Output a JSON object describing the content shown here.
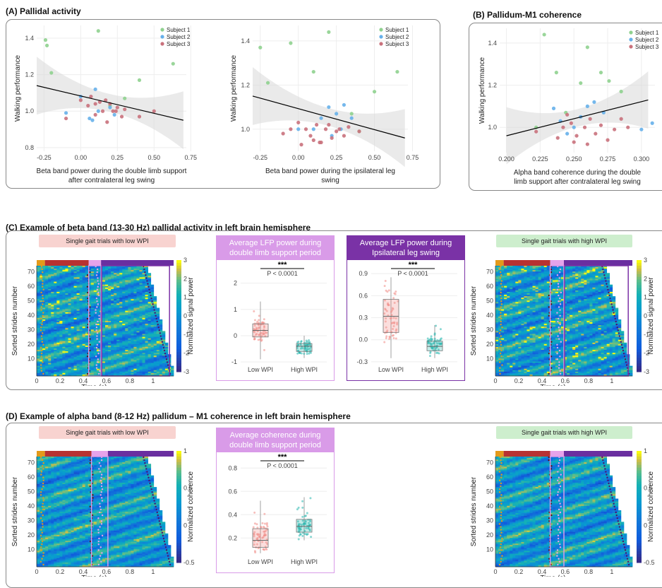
{
  "panels": {
    "a_title": "(A) Pallidal activity",
    "b_title": "(B) Pallidum-M1 coherence",
    "c_title": "(C)  Example of beta band (13-30 Hz) pallidal activity in left brain hemisphere",
    "d_title": "(D)  Example of alpha band (8-12 Hz) pallidum – M1 coherence in left brain hemisphere"
  },
  "colors": {
    "subject1": "#8fd18f",
    "subject2": "#66b0ea",
    "subject3": "#c9717c",
    "low_wpi": "#f08a85",
    "high_wpi": "#27b7ae",
    "lilac": "#d99be8",
    "purple": "#7a32a6"
  },
  "chart_data": [
    {
      "type": "scatter",
      "id": "A1",
      "xlabel": "Beta band power during the double limb support after contralateral leg swing",
      "ylabel": "Walking performance",
      "xticks": [
        "-0.25",
        "0.00",
        "0.25",
        "0.50",
        "0.75"
      ],
      "yticks": [
        "0.8",
        "1.0",
        "1.2",
        "1.4"
      ],
      "xlim": [
        -0.3,
        0.72
      ],
      "ylim": [
        0.78,
        1.47
      ],
      "legend_position": "top-right",
      "series": [
        {
          "name": "Subject 1",
          "x": [
            -0.24,
            -0.23,
            -0.2,
            0.12,
            0.4,
            0.63,
            0.3,
            0.2
          ],
          "y": [
            1.39,
            1.36,
            1.21,
            1.44,
            1.17,
            1.26,
            1.07,
            1.03
          ]
        },
        {
          "name": "Subject 2",
          "x": [
            -0.1,
            0.08,
            0.1,
            0.0,
            0.2,
            0.23,
            0.12,
            0.06
          ],
          "y": [
            0.99,
            0.95,
            1.12,
            1.08,
            1.02,
            0.98,
            1.0,
            0.96
          ]
        },
        {
          "name": "Subject 3",
          "x": [
            -0.1,
            0.0,
            0.05,
            0.1,
            0.15,
            0.17,
            0.2,
            0.22,
            0.25,
            0.28,
            0.1,
            0.3,
            0.18,
            0.07,
            0.13,
            0.24,
            0.4,
            0.5
          ],
          "y": [
            0.96,
            1.06,
            1.03,
            1.04,
            1.0,
            1.06,
            1.04,
            1.0,
            1.02,
            0.97,
            0.98,
            1.01,
            0.94,
            1.08,
            1.05,
            1.0,
            0.97,
            1.0
          ]
        }
      ],
      "trend": {
        "x": [
          -0.3,
          0.7
        ],
        "y": [
          1.14,
          0.95
        ]
      }
    },
    {
      "type": "scatter",
      "id": "A2",
      "xlabel": "Beta band power during the ipsilateral leg swing",
      "ylabel": "Walking performance",
      "xticks": [
        "-0.25",
        "0.00",
        "0.25",
        "0.50",
        "0.75"
      ],
      "yticks": [
        "1.0",
        "1.2",
        "1.4"
      ],
      "xlim": [
        -0.3,
        0.72
      ],
      "ylim": [
        0.9,
        1.47
      ],
      "legend_position": "top-right",
      "series": [
        {
          "name": "Subject 1",
          "x": [
            -0.25,
            -0.2,
            -0.05,
            0.2,
            0.1,
            0.5,
            0.65,
            0.35,
            0.4
          ],
          "y": [
            1.37,
            1.21,
            1.39,
            1.44,
            1.26,
            1.17,
            1.26,
            1.07,
            0.99
          ]
        },
        {
          "name": "Subject 2",
          "x": [
            0.0,
            0.1,
            0.15,
            0.2,
            0.25,
            0.3,
            0.35,
            0.28,
            0.22
          ],
          "y": [
            1.0,
            1.0,
            1.05,
            1.1,
            1.07,
            1.11,
            1.05,
            1.0,
            0.97
          ]
        },
        {
          "name": "Subject 3",
          "x": [
            -0.1,
            -0.05,
            0.0,
            0.05,
            0.1,
            0.12,
            0.15,
            0.18,
            0.2,
            0.22,
            0.25,
            0.3,
            0.02,
            0.08,
            0.14,
            0.27,
            0.33,
            0.4
          ],
          "y": [
            0.98,
            1.0,
            1.03,
            1.0,
            0.95,
            1.02,
            0.94,
            1.0,
            1.02,
            0.96,
            0.99,
            0.97,
            0.93,
            0.97,
            0.94,
            1.0,
            1.01,
            0.99
          ]
        }
      ],
      "trend": {
        "x": [
          -0.3,
          0.7
        ],
        "y": [
          1.15,
          0.96
        ]
      }
    },
    {
      "type": "scatter",
      "id": "B",
      "xlabel": "Alpha band coherence during the double limb support after contralateral leg swing",
      "ylabel": "Walking performance",
      "xticks": [
        "0.200",
        "0.225",
        "0.250",
        "0.275",
        "0.300"
      ],
      "yticks": [
        "1.0",
        "1.2",
        "1.4"
      ],
      "xlim": [
        0.195,
        0.31
      ],
      "ylim": [
        0.88,
        1.47
      ],
      "legend_position": "top-right",
      "series": [
        {
          "name": "Subject 1",
          "x": [
            0.228,
            0.237,
            0.255,
            0.26,
            0.27,
            0.276,
            0.285,
            0.244,
            0.222
          ],
          "y": [
            1.44,
            1.26,
            1.21,
            1.38,
            1.26,
            1.22,
            1.17,
            1.07,
            1.0
          ]
        },
        {
          "name": "Subject 2",
          "x": [
            0.235,
            0.24,
            0.25,
            0.255,
            0.265,
            0.272,
            0.3,
            0.308,
            0.245,
            0.26
          ],
          "y": [
            1.09,
            1.03,
            1.0,
            1.05,
            1.12,
            1.07,
            0.99,
            1.02,
            0.97,
            1.1
          ]
        },
        {
          "name": "Subject 3",
          "x": [
            0.222,
            0.238,
            0.242,
            0.248,
            0.252,
            0.258,
            0.262,
            0.266,
            0.27,
            0.275,
            0.28,
            0.285,
            0.25,
            0.26,
            0.29,
            0.245
          ],
          "y": [
            0.98,
            0.95,
            1.0,
            1.02,
            0.96,
            1.0,
            1.04,
            0.97,
            1.01,
            0.94,
            0.99,
            1.04,
            0.93,
            0.92,
            1.0,
            1.06
          ]
        }
      ],
      "trend": {
        "x": [
          0.2,
          0.305
        ],
        "y": [
          0.96,
          1.13
        ]
      }
    },
    {
      "type": "heatmap",
      "id": "C_low",
      "title": "Single gait trials with low WPI",
      "xlabel": "Time (s)",
      "ylabel": "Sorted strides number",
      "colorbar_label": "Normalized signal power",
      "xticks": [
        "0",
        "0.2",
        "0.4",
        "0.6",
        "0.8",
        "1"
      ],
      "yticks": [
        "10",
        "20",
        "30",
        "40",
        "50",
        "60",
        "70"
      ],
      "cbar_ticks": [
        "3",
        "2",
        "1",
        "0",
        "-1",
        "-2",
        "-3"
      ],
      "colormap": "parula"
    },
    {
      "type": "box",
      "id": "C_box1",
      "title": "Average LFP power during double limb support period",
      "categories": [
        "Low WPI",
        "High WPI"
      ],
      "yticks": [
        "2",
        "1",
        "0",
        "-1"
      ],
      "ylim": [
        -1.05,
        2.5
      ],
      "significance": "***",
      "p_text": "P < 0.0001",
      "boxes": [
        {
          "q1": -0.05,
          "median": 0.2,
          "q3": 0.45,
          "min": -0.9,
          "max": 1.3
        },
        {
          "q1": -0.6,
          "median": -0.4,
          "q3": -0.3,
          "min": -0.85,
          "max": 0.0
        }
      ]
    },
    {
      "type": "box",
      "id": "C_box2",
      "title": "Average LFP power during Ipsilateral leg swing",
      "categories": [
        "Low WPI",
        "High WPI"
      ],
      "yticks": [
        "0.9",
        "0.6",
        "0.3",
        "0.0",
        "-0.3"
      ],
      "ylim": [
        -0.32,
        0.95
      ],
      "significance": "***",
      "p_text": "P < 0.0001",
      "boxes": [
        {
          "q1": 0.1,
          "median": 0.32,
          "q3": 0.55,
          "min": -0.25,
          "max": 0.85
        },
        {
          "q1": -0.15,
          "median": -0.09,
          "q3": -0.02,
          "min": -0.25,
          "max": 0.2
        }
      ]
    },
    {
      "type": "heatmap",
      "id": "C_high",
      "title": "Single gait trials with high WPI",
      "xlabel": "Time (s)",
      "ylabel": "Sorted strides number",
      "colorbar_label": "Normalized signal power",
      "xticks": [
        "0",
        "0.2",
        "0.4",
        "0.6",
        "0.8",
        "1"
      ],
      "yticks": [
        "10",
        "20",
        "30",
        "40",
        "50",
        "60",
        "70"
      ],
      "cbar_ticks": [
        "3",
        "2",
        "1",
        "0",
        "-1",
        "-2",
        "-3"
      ],
      "colormap": "parula"
    },
    {
      "type": "heatmap",
      "id": "D_low",
      "title": "Single gait trials with low WPI",
      "xlabel": "Time (s)",
      "ylabel": "Sorted strides number",
      "colorbar_label": "Normalized coherence",
      "xticks": [
        "0",
        "0.2",
        "0.4",
        "0.6",
        "0.8",
        "1"
      ],
      "yticks": [
        "10",
        "20",
        "30",
        "40",
        "50",
        "60",
        "70"
      ],
      "cbar_ticks": [
        "1",
        "0.5",
        "0",
        "-0.5"
      ],
      "colormap": "parula"
    },
    {
      "type": "box",
      "id": "D_box",
      "title": "Average coherence during double limb support period",
      "categories": [
        "Low WPI",
        "High WPI"
      ],
      "yticks": [
        "0.8",
        "0.6",
        "0.4",
        "0.2"
      ],
      "ylim": [
        0.05,
        0.85
      ],
      "significance": "***",
      "p_text": "P < 0.0001",
      "boxes": [
        {
          "q1": 0.12,
          "median": 0.18,
          "q3": 0.28,
          "min": 0.07,
          "max": 0.52
        },
        {
          "q1": 0.25,
          "median": 0.3,
          "q3": 0.36,
          "min": 0.18,
          "max": 0.55
        }
      ]
    },
    {
      "type": "heatmap",
      "id": "D_high",
      "title": "Single gait trials with high WPI",
      "xlabel": "Time (s)",
      "ylabel": "Sorted strides number",
      "colorbar_label": "Normalized coherence",
      "xticks": [
        "0",
        "0.2",
        "0.4",
        "0.6",
        "0.8",
        "1"
      ],
      "yticks": [
        "10",
        "20",
        "30",
        "40",
        "50",
        "60",
        "70"
      ],
      "cbar_ticks": [
        "1",
        "0.5",
        "0",
        "-0.5"
      ],
      "colormap": "parula"
    }
  ]
}
